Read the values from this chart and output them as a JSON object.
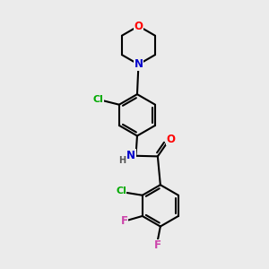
{
  "background_color": "#ebebeb",
  "bond_color": "#000000",
  "atom_colors": {
    "O": "#ff0000",
    "N": "#0000cc",
    "Cl": "#00aa00",
    "F": "#cc44aa",
    "H": "#555555"
  },
  "lw": 1.5,
  "fs": 8.5
}
